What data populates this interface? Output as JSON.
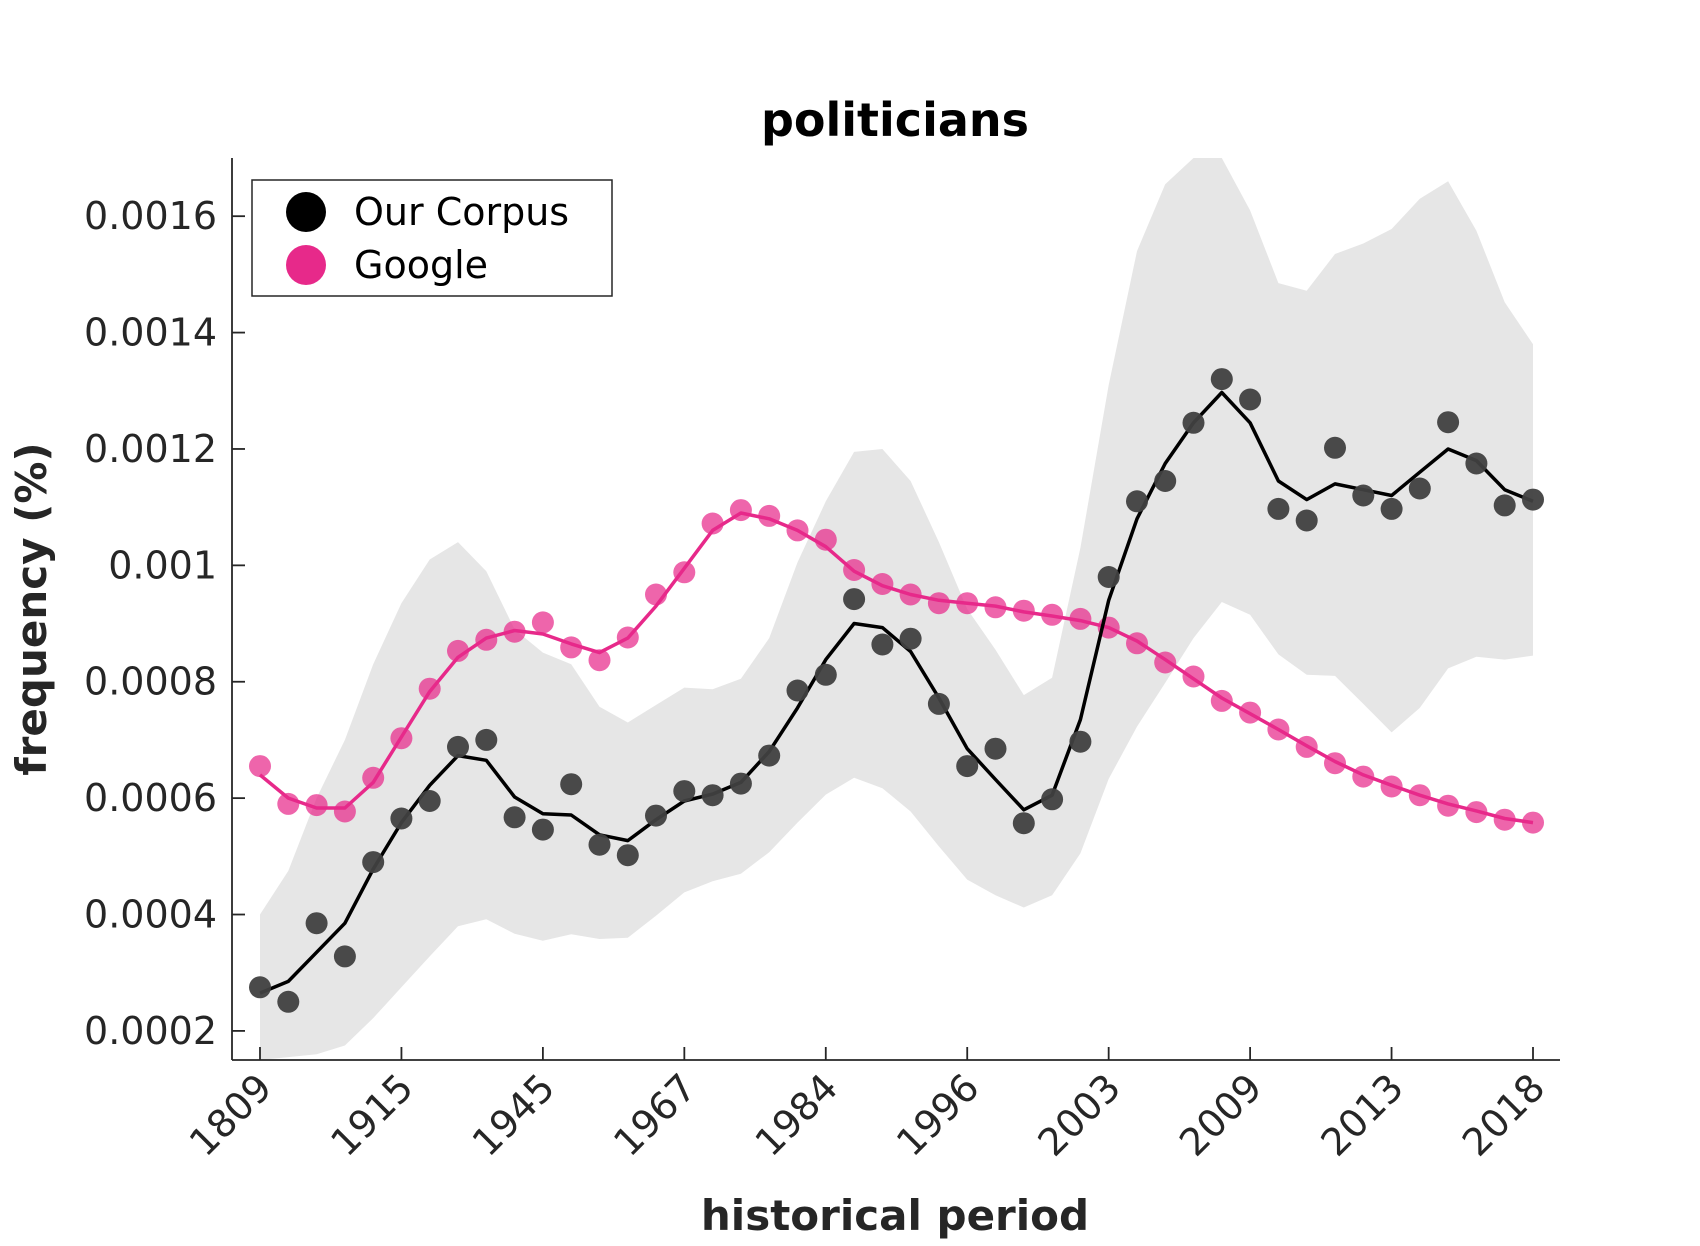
{
  "chart_data": {
    "type": "line",
    "title": "politicians",
    "xlabel": "historical period",
    "ylabel": "frequency (%)",
    "x_tick_labels": [
      "1809",
      "1915",
      "1945",
      "1967",
      "1984",
      "1996",
      "2003",
      "2009",
      "2013",
      "2018"
    ],
    "y_ticks": [
      0.0002,
      0.0004,
      0.0006,
      0.0008,
      0.001,
      0.0012,
      0.0014,
      0.0016
    ],
    "y_tick_labels": [
      "0.0002",
      "0.0004",
      "0.0006",
      "0.0008",
      "0.001",
      "0.0012",
      "0.0014",
      "0.0016"
    ],
    "ylim": [
      0.00015,
      0.0017
    ],
    "grid": false,
    "legend_position": "top-left",
    "colors": {
      "corpus": "#000000",
      "corpus_points": "#404040",
      "google": "#e7298a",
      "band": "#e6e6e6",
      "axis": "#262626"
    },
    "series": [
      {
        "name": "Our Corpus",
        "points": [
          0.000275,
          0.00025,
          0.000385,
          0.000328,
          0.00049,
          0.000565,
          0.000595,
          0.000688,
          0.0007,
          0.000567,
          0.000546,
          0.000624,
          0.00052,
          0.000502,
          0.00057,
          0.000612,
          0.000605,
          0.000625,
          0.000673,
          0.000785,
          0.000812,
          0.000942,
          0.000864,
          0.000874,
          0.000762,
          0.000655,
          0.000685,
          0.000557,
          0.000598,
          0.000697,
          0.00098,
          0.00111,
          0.001145,
          0.001245,
          0.00132,
          0.001285,
          0.001097,
          0.001077,
          0.001202,
          0.00112,
          0.001097,
          0.001132,
          0.001246,
          0.001175,
          0.001103,
          0.001113
        ],
        "smoothed": [
          0.000265,
          0.000285,
          0.000335,
          0.000385,
          0.000478,
          0.000558,
          0.000622,
          0.000673,
          0.000665,
          0.000602,
          0.000573,
          0.000571,
          0.000537,
          0.000527,
          0.000563,
          0.000595,
          0.000607,
          0.000627,
          0.00068,
          0.000755,
          0.000838,
          0.0009,
          0.000893,
          0.000852,
          0.000772,
          0.000685,
          0.000632,
          0.00058,
          0.000605,
          0.000735,
          0.00094,
          0.00108,
          0.001175,
          0.001245,
          0.001297,
          0.001245,
          0.001145,
          0.001113,
          0.00114,
          0.00113,
          0.00112,
          0.00116,
          0.0012,
          0.00118,
          0.00113,
          0.00111
        ],
        "band_upper": [
          0.0004,
          0.000475,
          0.0006,
          0.0007,
          0.00083,
          0.000935,
          0.00101,
          0.00104,
          0.00099,
          0.00089,
          0.00085,
          0.00083,
          0.000757,
          0.00073,
          0.00076,
          0.00079,
          0.000787,
          0.000805,
          0.000875,
          0.001005,
          0.00111,
          0.001195,
          0.0012,
          0.001145,
          0.00104,
          0.000925,
          0.000855,
          0.000777,
          0.000807,
          0.00103,
          0.00131,
          0.00154,
          0.001655,
          0.0017,
          0.0017,
          0.00161,
          0.001485,
          0.001472,
          0.001535,
          0.001553,
          0.001578,
          0.00163,
          0.00166,
          0.001575,
          0.001452,
          0.00138
        ],
        "band_lower": [
          0.00015,
          0.000155,
          0.00016,
          0.000175,
          0.000222,
          0.000275,
          0.000328,
          0.00038,
          0.000392,
          0.000367,
          0.000355,
          0.000366,
          0.000358,
          0.00036,
          0.000398,
          0.000438,
          0.000457,
          0.00047,
          0.000507,
          0.000558,
          0.000606,
          0.000635,
          0.000617,
          0.000577,
          0.000517,
          0.00046,
          0.000433,
          0.000412,
          0.000433,
          0.000505,
          0.000633,
          0.000723,
          0.000798,
          0.000875,
          0.000937,
          0.000915,
          0.000847,
          0.000812,
          0.00081,
          0.000762,
          0.000713,
          0.000755,
          0.000823,
          0.000843,
          0.000838,
          0.000845
        ]
      },
      {
        "name": "Google",
        "points": [
          0.000655,
          0.00059,
          0.000588,
          0.000577,
          0.000635,
          0.000703,
          0.000788,
          0.000853,
          0.000872,
          0.000886,
          0.000902,
          0.000859,
          0.000837,
          0.000876,
          0.00095,
          0.000988,
          0.001072,
          0.001095,
          0.001085,
          0.00106,
          0.001044,
          0.000992,
          0.000968,
          0.00095,
          0.000935,
          0.000935,
          0.000928,
          0.000922,
          0.000915,
          0.000908,
          0.000893,
          0.000866,
          0.000833,
          0.000809,
          0.000767,
          0.000747,
          0.000718,
          0.000688,
          0.00066,
          0.000637,
          0.00062,
          0.000605,
          0.000587,
          0.000576,
          0.000563,
          0.000558
        ],
        "smoothed": [
          0.00064,
          0.0006,
          0.000583,
          0.000583,
          0.000627,
          0.000705,
          0.000783,
          0.000842,
          0.000875,
          0.000888,
          0.000882,
          0.000865,
          0.00085,
          0.000875,
          0.00093,
          0.000995,
          0.00106,
          0.00109,
          0.00108,
          0.00106,
          0.001032,
          0.00099,
          0.000965,
          0.00095,
          0.00094,
          0.000935,
          0.00093,
          0.00092,
          0.000913,
          0.000905,
          0.000893,
          0.00087,
          0.000838,
          0.000805,
          0.000772,
          0.000745,
          0.000718,
          0.00069,
          0.000663,
          0.00064,
          0.000622,
          0.000605,
          0.00059,
          0.000578,
          0.000565,
          0.000558
        ]
      }
    ]
  }
}
